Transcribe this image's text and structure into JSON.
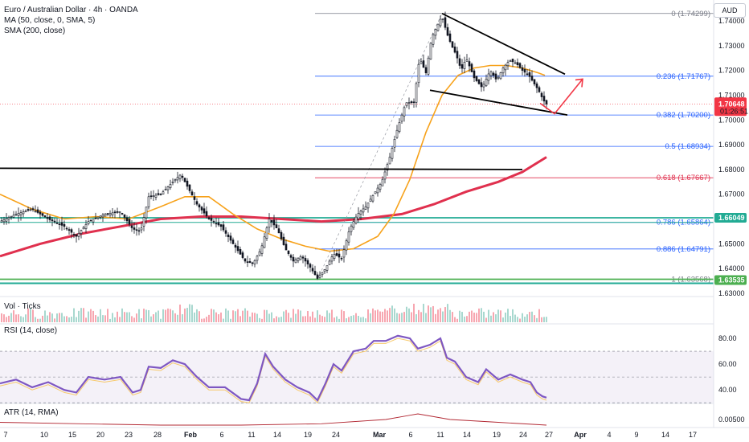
{
  "header": {
    "title": "Euro / Australian Dollar · 4h · OANDA",
    "ma_legend": "MA (50, close, 0, SMA, 5)",
    "sma_legend": "SMA (200, close)",
    "currency": "AUD"
  },
  "panes": {
    "volume": "Vol · Ticks",
    "rsi": "RSI (14, close)",
    "atr": "ATR (14, RMA)"
  },
  "colors": {
    "sma200": "#e0304e",
    "ma50": "#f7a21b",
    "rsi": "#7e57c2",
    "candle": "#131722",
    "fib": "#2962ff",
    "fib_618": "#e0304e",
    "teal": "#22ab94",
    "green": "#4caf50",
    "trend": "#000000",
    "arrow": "#f23645"
  },
  "chart_data": {
    "type": "candlestick",
    "symbol": "Euro / Australian Dollar",
    "timeframe": "4h",
    "price_axis_ticks": [
      1.74,
      1.73,
      1.72,
      1.71,
      1.7,
      1.69,
      1.68,
      1.67,
      1.66,
      1.65,
      1.64,
      1.63
    ],
    "price_axis_labels": [
      "1.74000",
      "1.73000",
      "1.72000",
      "1.71000",
      "1.70000",
      "1.69000",
      "1.68000",
      "1.67000",
      "1.66000",
      "1.65000",
      "1.64000",
      "1.63000"
    ],
    "x_axis_labels": [
      {
        "label": "7",
        "bold": false
      },
      {
        "label": "10",
        "bold": false
      },
      {
        "label": "15",
        "bold": false
      },
      {
        "label": "20",
        "bold": false
      },
      {
        "label": "23",
        "bold": false
      },
      {
        "label": "28",
        "bold": false
      },
      {
        "label": "Feb",
        "bold": true
      },
      {
        "label": "6",
        "bold": false
      },
      {
        "label": "11",
        "bold": false
      },
      {
        "label": "14",
        "bold": false
      },
      {
        "label": "19",
        "bold": false
      },
      {
        "label": "24",
        "bold": false
      },
      {
        "label": "Mar",
        "bold": true
      },
      {
        "label": "6",
        "bold": false
      },
      {
        "label": "11",
        "bold": false
      },
      {
        "label": "14",
        "bold": false
      },
      {
        "label": "19",
        "bold": false
      },
      {
        "label": "24",
        "bold": false
      },
      {
        "label": "27",
        "bold": false
      },
      {
        "label": "Apr",
        "bold": true
      },
      {
        "label": "4",
        "bold": false
      },
      {
        "label": "9",
        "bold": false
      },
      {
        "label": "14",
        "bold": false
      },
      {
        "label": "17",
        "bold": false
      }
    ],
    "fibonacci": [
      {
        "ratio": "0",
        "price": 1.74299,
        "label": "0 (1.74299)"
      },
      {
        "ratio": "0.236",
        "price": 1.71767,
        "label": "0.236 (1.71767)"
      },
      {
        "ratio": "0.382",
        "price": 1.702,
        "label": "0.382 (1.70200)"
      },
      {
        "ratio": "0.5",
        "price": 1.68934,
        "label": "0.5 (1.68934)"
      },
      {
        "ratio": "0.618",
        "price": 1.67667,
        "label": "0.618 (1.67667)"
      },
      {
        "ratio": "0.786",
        "price": 1.65864,
        "label": "0.786 (1.65864)"
      },
      {
        "ratio": "0.886",
        "price": 1.64791,
        "label": "0.886 (1.64791)"
      },
      {
        "ratio": "1",
        "price": 1.63568,
        "label": "1 (1.63568)"
      }
    ],
    "horizontal_levels": [
      {
        "price": 1.66049,
        "label": "1.66049"
      },
      {
        "price": 1.63535,
        "label": "1.63535"
      }
    ],
    "last_price": {
      "price": 1.70648,
      "label": "1.70648",
      "countdown": "01:26:51"
    },
    "price_path": [
      [
        0,
        1.659
      ],
      [
        20,
        1.662
      ],
      [
        40,
        1.664
      ],
      [
        60,
        1.66
      ],
      [
        80,
        1.657
      ],
      [
        95,
        1.653
      ],
      [
        110,
        1.659
      ],
      [
        130,
        1.662
      ],
      [
        150,
        1.663
      ],
      [
        165,
        1.656
      ],
      [
        175,
        1.655
      ],
      [
        185,
        1.669
      ],
      [
        200,
        1.67
      ],
      [
        215,
        1.675
      ],
      [
        225,
        1.678
      ],
      [
        235,
        1.672
      ],
      [
        245,
        1.666
      ],
      [
        260,
        1.66
      ],
      [
        275,
        1.657
      ],
      [
        290,
        1.65
      ],
      [
        305,
        1.643
      ],
      [
        315,
        1.642
      ],
      [
        325,
        1.648
      ],
      [
        335,
        1.66
      ],
      [
        345,
        1.656
      ],
      [
        355,
        1.648
      ],
      [
        365,
        1.643
      ],
      [
        375,
        1.645
      ],
      [
        385,
        1.641
      ],
      [
        395,
        1.636
      ],
      [
        405,
        1.64
      ],
      [
        415,
        1.646
      ],
      [
        425,
        1.644
      ],
      [
        435,
        1.656
      ],
      [
        445,
        1.662
      ],
      [
        455,
        1.665
      ],
      [
        465,
        1.67
      ],
      [
        475,
        1.675
      ],
      [
        485,
        1.685
      ],
      [
        495,
        1.697
      ],
      [
        505,
        1.707
      ],
      [
        515,
        1.707
      ],
      [
        522,
        1.725
      ],
      [
        530,
        1.719
      ],
      [
        537,
        1.733
      ],
      [
        544,
        1.738
      ],
      [
        550,
        1.742
      ],
      [
        556,
        1.735
      ],
      [
        562,
        1.73
      ],
      [
        568,
        1.726
      ],
      [
        574,
        1.72
      ],
      [
        580,
        1.725
      ],
      [
        590,
        1.717
      ],
      [
        600,
        1.713
      ],
      [
        610,
        1.72
      ],
      [
        618,
        1.716
      ],
      [
        626,
        1.721
      ],
      [
        634,
        1.724
      ],
      [
        642,
        1.723
      ],
      [
        650,
        1.72
      ],
      [
        658,
        1.718
      ],
      [
        664,
        1.715
      ],
      [
        670,
        1.712
      ],
      [
        676,
        1.708
      ],
      [
        681,
        1.706
      ]
    ],
    "ma50_path": [
      [
        0,
        1.67
      ],
      [
        40,
        1.664
      ],
      [
        80,
        1.66
      ],
      [
        120,
        1.661
      ],
      [
        160,
        1.66
      ],
      [
        200,
        1.665
      ],
      [
        230,
        1.669
      ],
      [
        260,
        1.669
      ],
      [
        290,
        1.662
      ],
      [
        320,
        1.656
      ],
      [
        350,
        1.652
      ],
      [
        380,
        1.649
      ],
      [
        410,
        1.647
      ],
      [
        440,
        1.648
      ],
      [
        470,
        1.653
      ],
      [
        490,
        1.662
      ],
      [
        510,
        1.676
      ],
      [
        530,
        1.695
      ],
      [
        550,
        1.71
      ],
      [
        570,
        1.718
      ],
      [
        590,
        1.721
      ],
      [
        610,
        1.722
      ],
      [
        630,
        1.722
      ],
      [
        650,
        1.721
      ],
      [
        670,
        1.719
      ],
      [
        678,
        1.718
      ]
    ],
    "sma200_path": [
      [
        0,
        1.645
      ],
      [
        50,
        1.65
      ],
      [
        100,
        1.654
      ],
      [
        150,
        1.657
      ],
      [
        200,
        1.66
      ],
      [
        250,
        1.661
      ],
      [
        300,
        1.661
      ],
      [
        350,
        1.66
      ],
      [
        400,
        1.659
      ],
      [
        450,
        1.66
      ],
      [
        500,
        1.662
      ],
      [
        540,
        1.666
      ],
      [
        580,
        1.671
      ],
      [
        620,
        1.675
      ],
      [
        650,
        1.679
      ],
      [
        680,
        1.685
      ]
    ],
    "trendlines": [
      {
        "name": "horizontal-resistance",
        "from": [
          0,
          1.6805
        ],
        "to": [
          650,
          1.68
        ]
      },
      {
        "name": "wedge-upper",
        "from": [
          550,
          1.743
        ],
        "to": [
          703,
          1.7185
        ]
      },
      {
        "name": "wedge-lower",
        "from": [
          535,
          1.712
        ],
        "to": [
          706,
          1.702
        ]
      }
    ],
    "projection_arrow": {
      "from": [
        682,
        1.7035
      ],
      "points": [
        [
          690,
          1.7025
        ],
        [
          725,
          1.7165
        ]
      ]
    },
    "rsi": {
      "levels": [
        80,
        60,
        40
      ],
      "upper_band": 70,
      "lower_band": 30,
      "values": [
        [
          0,
          45
        ],
        [
          20,
          48
        ],
        [
          40,
          42
        ],
        [
          60,
          46
        ],
        [
          80,
          40
        ],
        [
          95,
          38
        ],
        [
          110,
          50
        ],
        [
          130,
          48
        ],
        [
          150,
          50
        ],
        [
          165,
          38
        ],
        [
          175,
          40
        ],
        [
          185,
          58
        ],
        [
          200,
          57
        ],
        [
          215,
          63
        ],
        [
          230,
          60
        ],
        [
          245,
          50
        ],
        [
          260,
          42
        ],
        [
          280,
          42
        ],
        [
          300,
          33
        ],
        [
          310,
          32
        ],
        [
          320,
          45
        ],
        [
          330,
          68
        ],
        [
          340,
          58
        ],
        [
          355,
          48
        ],
        [
          370,
          42
        ],
        [
          385,
          38
        ],
        [
          395,
          32
        ],
        [
          405,
          45
        ],
        [
          415,
          60
        ],
        [
          425,
          55
        ],
        [
          440,
          70
        ],
        [
          455,
          72
        ],
        [
          465,
          78
        ],
        [
          480,
          78
        ],
        [
          495,
          82
        ],
        [
          510,
          80
        ],
        [
          520,
          72
        ],
        [
          535,
          75
        ],
        [
          548,
          80
        ],
        [
          556,
          65
        ],
        [
          566,
          62
        ],
        [
          580,
          50
        ],
        [
          595,
          46
        ],
        [
          605,
          56
        ],
        [
          620,
          48
        ],
        [
          635,
          52
        ],
        [
          650,
          48
        ],
        [
          660,
          46
        ],
        [
          668,
          38
        ],
        [
          675,
          35
        ],
        [
          680,
          34
        ]
      ]
    },
    "atr_path": [
      [
        0,
        0.0048
      ],
      [
        100,
        0.0047
      ],
      [
        200,
        0.0046
      ],
      [
        300,
        0.0046
      ],
      [
        400,
        0.0047
      ],
      [
        480,
        0.005
      ],
      [
        520,
        0.0054
      ],
      [
        560,
        0.005
      ],
      [
        620,
        0.0048
      ],
      [
        680,
        0.0046
      ]
    ],
    "atr_axis_label": "0.00500",
    "rsi_axis_labels": [
      "80.00",
      "60.00",
      "40.00"
    ]
  }
}
